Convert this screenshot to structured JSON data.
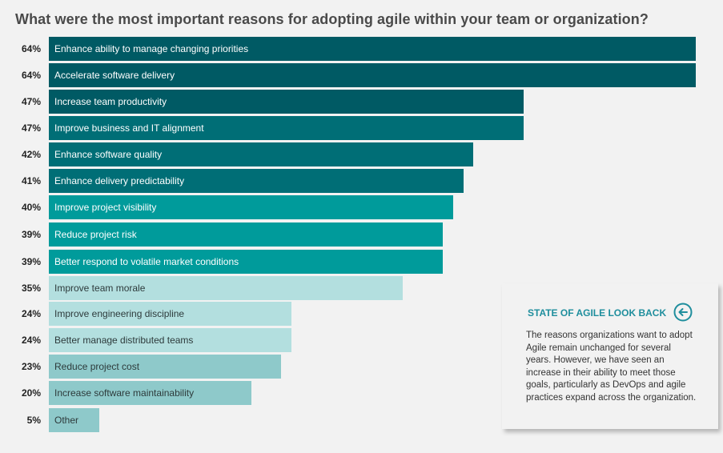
{
  "chart_data": {
    "type": "bar",
    "orientation": "horizontal",
    "title": "What were the most important reasons for adopting agile within your team or organization?",
    "categories": [
      "Enhance ability to manage changing priorities",
      "Accelerate software delivery",
      "Increase team productivity",
      "Improve business and IT alignment",
      "Enhance software quality",
      "Enhance delivery predictability",
      "Improve project visibility",
      "Reduce project risk",
      "Better respond to volatile market conditions",
      "Improve team morale",
      "Improve engineering discipline",
      "Better manage distributed teams",
      "Reduce project cost",
      "Increase software maintainability",
      "Other"
    ],
    "values": [
      64,
      64,
      47,
      47,
      42,
      41,
      40,
      39,
      39,
      35,
      24,
      24,
      23,
      20,
      5
    ],
    "value_labels": [
      "64%",
      "64%",
      "47%",
      "47%",
      "42%",
      "41%",
      "40%",
      "39%",
      "39%",
      "35%",
      "24%",
      "24%",
      "23%",
      "20%",
      "5%"
    ],
    "xlim": [
      0,
      64
    ],
    "grid": false,
    "legend": "none",
    "colors": {
      "dark": "#005a64",
      "medium": "#006e76",
      "teal": "#009b9b",
      "pale": "#b3dfdf",
      "light": "#8ec9ca"
    },
    "bar_colors": [
      "dark",
      "dark",
      "dark",
      "medium",
      "medium",
      "medium",
      "teal",
      "teal",
      "teal",
      "pale",
      "pale",
      "pale",
      "light",
      "light",
      "light"
    ]
  },
  "lookback": {
    "title": "STATE OF AGILE LOOK BACK",
    "icon": "circle-arrow-left-icon",
    "text": "The reasons organizations want to adopt Agile remain unchanged for several years. However, we have seen an increase in their ability to meet those goals, particularly as DevOps and agile practices expand across the organization."
  }
}
